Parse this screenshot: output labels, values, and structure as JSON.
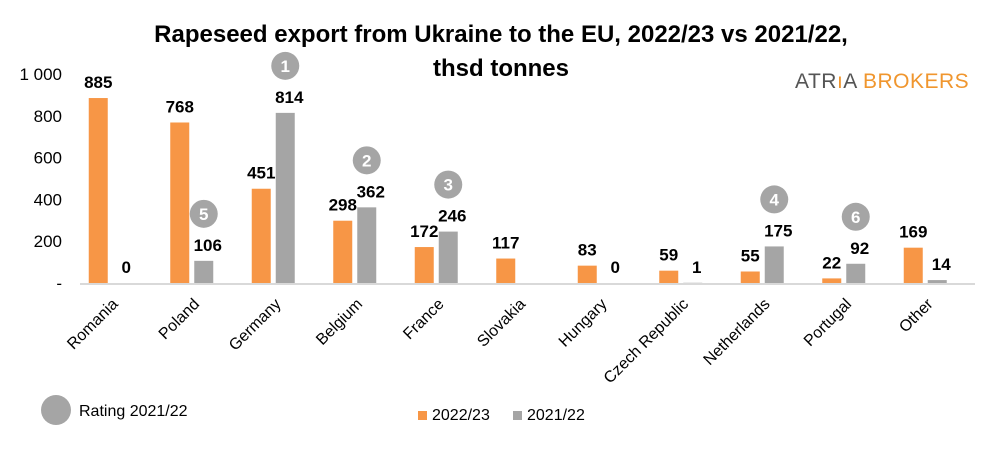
{
  "chart_data": {
    "type": "bar",
    "title_line1": "Rapeseed export from Ukraine to the EU, 2022/23 vs 2021/22,",
    "title_line2": "thsd tonnes",
    "categories": [
      "Romania",
      "Poland",
      "Germany",
      "Belgium",
      "France",
      "Slovakia",
      "Hungary",
      "Czech Republic",
      "Netherlands",
      "Portugal",
      "Other"
    ],
    "series": [
      {
        "name": "2022/23",
        "color": "#f79646",
        "values": [
          885,
          768,
          451,
          298,
          172,
          117,
          83,
          59,
          55,
          22,
          169
        ]
      },
      {
        "name": "2021/22",
        "color": "#a5a5a5",
        "values": [
          0,
          106,
          814,
          362,
          246,
          null,
          0,
          1,
          175,
          92,
          14
        ]
      }
    ],
    "ratings_2021_22": {
      "Germany": "1",
      "Belgium": "2",
      "France": "3",
      "Netherlands": "4",
      "Poland": "5",
      "Portugal": "6"
    },
    "rating_legend": "Rating 2021/22",
    "yticks": [
      "-",
      "200",
      "400",
      "600",
      "800",
      "1 000"
    ],
    "ylim": [
      0,
      1000
    ],
    "legend_position": "bottom"
  },
  "logo": {
    "part1": "ATR",
    "part2": "A",
    "part3": "BROKERS"
  }
}
